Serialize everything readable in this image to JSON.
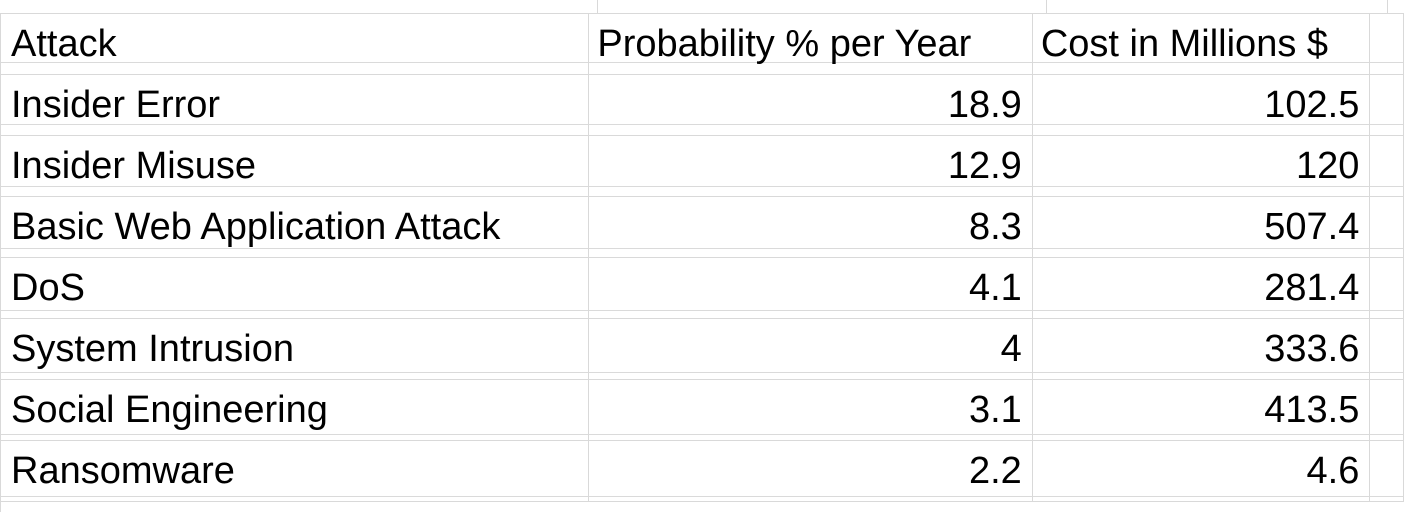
{
  "sheet": {
    "columns": [
      "Attack",
      "Probability % per Year",
      "Cost in Millions $"
    ],
    "rows": [
      {
        "attack": "Insider Error",
        "probability": "18.9",
        "cost": "102.5"
      },
      {
        "attack": "Insider Misuse",
        "probability": "12.9",
        "cost": "120"
      },
      {
        "attack": "Basic Web Application Attack",
        "probability": "8.3",
        "cost": "507.4"
      },
      {
        "attack": "DoS",
        "probability": "4.1",
        "cost": "281.4"
      },
      {
        "attack": "System Intrusion",
        "probability": "4",
        "cost": "333.6"
      },
      {
        "attack": "Social Engineering",
        "probability": "3.1",
        "cost": "413.5"
      },
      {
        "attack": "Ransomware",
        "probability": "2.2",
        "cost": "4.6"
      }
    ]
  }
}
